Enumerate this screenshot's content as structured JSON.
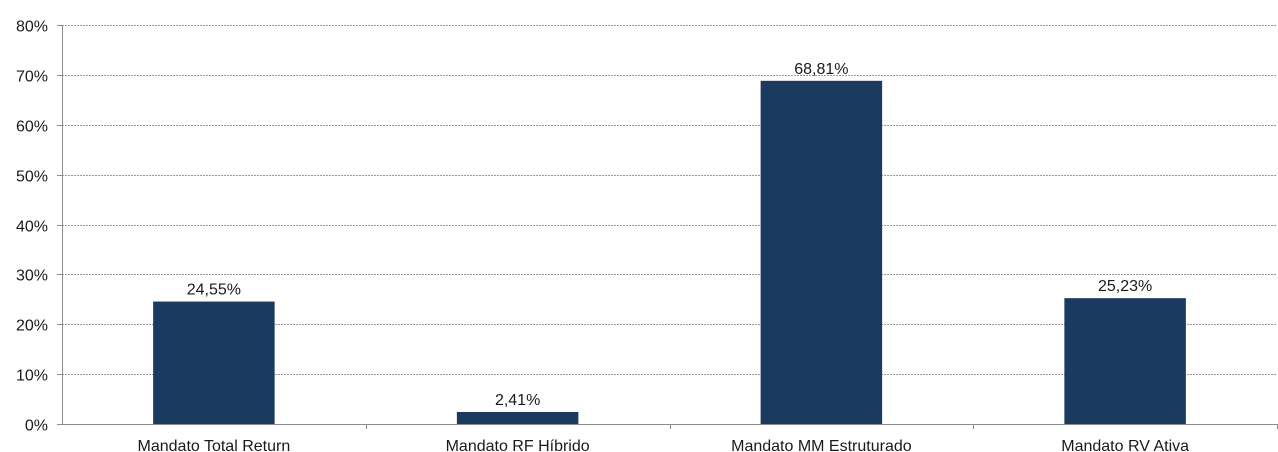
{
  "chart_data": {
    "type": "bar",
    "categories": [
      "Mandato Total Return",
      "Mandato RF Híbrido",
      "Mandato MM Estruturado",
      "Mandato RV Ativa"
    ],
    "values": [
      24.55,
      2.41,
      68.81,
      25.23
    ],
    "data_labels": [
      "24,55%",
      "2,41%",
      "68,81%",
      "25,23%"
    ],
    "y_ticks": [
      0,
      10,
      20,
      30,
      40,
      50,
      60,
      70,
      80
    ],
    "y_tick_labels": [
      "0%",
      "10%",
      "20%",
      "30%",
      "40%",
      "50%",
      "60%",
      "70%",
      "80%"
    ],
    "ylim": [
      0,
      80
    ],
    "grid": true,
    "legend": "none",
    "bar_color": "#1b3a5f",
    "title": "",
    "xlabel": "",
    "ylabel": ""
  }
}
